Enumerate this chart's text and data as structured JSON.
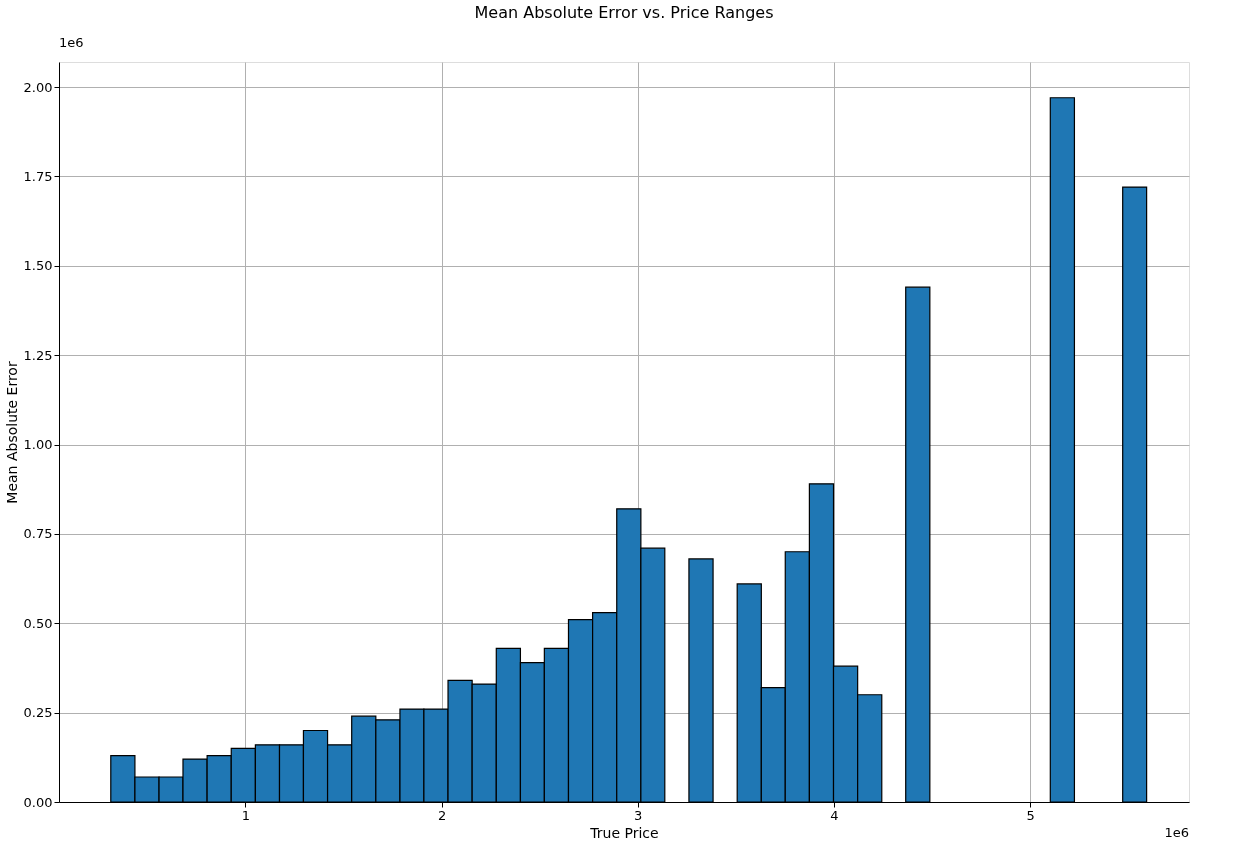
{
  "chart_data": {
    "type": "histogram",
    "title": "Mean Absolute Error vs. Price Ranges",
    "xlabel": "True Price",
    "ylabel": "Mean Absolute Error",
    "bins": [
      0.314,
      0.437,
      0.56,
      0.682,
      0.805,
      0.928,
      1.051,
      1.174,
      1.296,
      1.419,
      1.542,
      1.665,
      1.788,
      1.91,
      2.033,
      2.156,
      2.279,
      2.402,
      2.524,
      2.647,
      2.77,
      2.893,
      3.016,
      3.138,
      3.261,
      3.384,
      3.507,
      3.63,
      3.752,
      3.875,
      3.998,
      4.121,
      4.244,
      4.366,
      4.489,
      4.612,
      4.735,
      4.858,
      4.98,
      5.103,
      5.226,
      5.349,
      5.472,
      5.594
    ],
    "values": [
      0.13,
      0.07,
      0.07,
      0.12,
      0.13,
      0.15,
      0.16,
      0.16,
      0.2,
      0.16,
      0.24,
      0.23,
      0.26,
      0.26,
      0.34,
      0.33,
      0.43,
      0.39,
      0.43,
      0.51,
      0.53,
      0.82,
      0.71,
      null,
      0.68,
      null,
      0.61,
      0.32,
      0.7,
      0.89,
      0.38,
      0.3,
      null,
      1.44,
      null,
      null,
      null,
      null,
      null,
      1.97,
      null,
      null,
      1.72
    ],
    "color": "#1f77b4",
    "xlim": [
      0.05,
      5.81
    ],
    "ylim": [
      0,
      2.07
    ],
    "xticks": [
      1,
      2,
      3,
      4,
      5
    ],
    "yticks": [
      {
        "value": 0,
        "label": "0.00"
      },
      {
        "value": 0.25,
        "label": "0.25"
      },
      {
        "value": 0.5,
        "label": "0.50"
      },
      {
        "value": 0.75,
        "label": "0.75"
      },
      {
        "value": 1,
        "label": "1.00"
      },
      {
        "value": 1.25,
        "label": "1.25"
      },
      {
        "value": 1.5,
        "label": "1.50"
      },
      {
        "value": 1.75,
        "label": "1.75"
      },
      {
        "value": 2,
        "label": "2.00"
      }
    ],
    "grid": true,
    "annotations": [
      "1e6",
      "1e6"
    ]
  }
}
